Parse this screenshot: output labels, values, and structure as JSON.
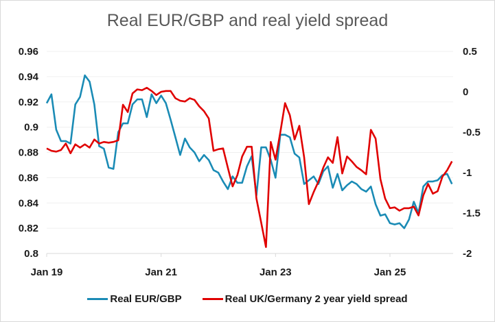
{
  "chart_data": {
    "type": "line",
    "title": "Real EUR/GBP and real yield spread",
    "xlabel": "",
    "ylabel": "",
    "x_start": "2019-01",
    "x_frequency": "monthly",
    "x_tick_labels": [
      "Jan 19",
      "Jan 21",
      "Jan 23",
      "Jan 25"
    ],
    "y_left": {
      "range": [
        0.8,
        0.96
      ],
      "ticks": [
        "0.96",
        "0.94",
        "0.92",
        "0.9",
        "0.88",
        "0.86",
        "0.84",
        "0.82",
        "0.8"
      ]
    },
    "y_right": {
      "range": [
        -2,
        0.5
      ],
      "ticks": [
        "0.5",
        "0",
        "-0.5",
        "-1",
        "-1.5",
        "-2"
      ]
    },
    "grid": true,
    "legend_position": "bottom",
    "series": [
      {
        "name": "Real EUR/GBP",
        "axis": "left",
        "color": "#1a8bb5",
        "values": [
          0.919,
          0.926,
          0.898,
          0.889,
          0.889,
          0.887,
          0.918,
          0.924,
          0.941,
          0.936,
          0.918,
          0.885,
          0.883,
          0.868,
          0.867,
          0.896,
          0.903,
          0.903,
          0.918,
          0.922,
          0.922,
          0.908,
          0.926,
          0.919,
          0.925,
          0.919,
          0.906,
          0.892,
          0.878,
          0.891,
          0.884,
          0.88,
          0.873,
          0.878,
          0.874,
          0.866,
          0.864,
          0.857,
          0.851,
          0.861,
          0.856,
          0.856,
          0.869,
          0.877,
          0.846,
          0.884,
          0.884,
          0.874,
          0.86,
          0.894,
          0.894,
          0.892,
          0.879,
          0.876,
          0.855,
          0.858,
          0.861,
          0.855,
          0.865,
          0.869,
          0.852,
          0.863,
          0.85,
          0.854,
          0.857,
          0.855,
          0.851,
          0.849,
          0.853,
          0.839,
          0.83,
          0.831,
          0.824,
          0.823,
          0.824,
          0.82,
          0.827,
          0.841,
          0.832,
          0.853,
          0.857,
          0.857,
          0.858,
          0.862,
          0.863,
          0.855
        ]
      },
      {
        "name": "Real UK/Germany 2 year yield spread",
        "axis": "right",
        "color": "#e00000",
        "values": [
          -0.7,
          -0.73,
          -0.74,
          -0.72,
          -0.64,
          -0.76,
          -0.65,
          -0.69,
          -0.65,
          -0.69,
          -0.59,
          -0.64,
          -0.62,
          -0.63,
          -0.62,
          -0.6,
          -0.16,
          -0.25,
          -0.02,
          0.03,
          0.02,
          0.05,
          0.01,
          -0.04,
          0.0,
          0.01,
          0.01,
          -0.08,
          -0.11,
          -0.12,
          -0.08,
          -0.1,
          -0.18,
          -0.24,
          -0.33,
          -0.73,
          -0.71,
          -0.7,
          -0.94,
          -1.17,
          -1.03,
          -0.8,
          -0.68,
          -0.68,
          -1.32,
          -1.62,
          -1.92,
          -0.62,
          -0.84,
          -0.5,
          -0.14,
          -0.29,
          -0.59,
          -0.42,
          -0.81,
          -1.39,
          -1.24,
          -1.11,
          -0.94,
          -0.81,
          -0.88,
          -0.56,
          -1.01,
          -0.8,
          -0.86,
          -0.93,
          -0.97,
          -1.02,
          -0.47,
          -0.58,
          -1.08,
          -1.32,
          -1.44,
          -1.43,
          -1.47,
          -1.44,
          -1.44,
          -1.42,
          -1.53,
          -1.28,
          -1.14,
          -1.26,
          -1.23,
          -1.05,
          -0.97,
          -0.86
        ]
      }
    ]
  }
}
